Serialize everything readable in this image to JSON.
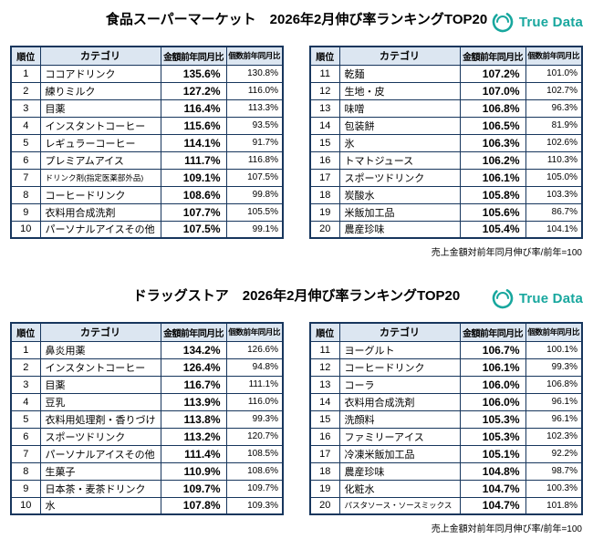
{
  "logo": {
    "text": "True Data",
    "icon": "truedata-ring-icon",
    "color": "#18a79e"
  },
  "colors": {
    "border": "#17365d",
    "header_bg": "#dce6f1",
    "logo_teal": "#18a79e"
  },
  "table_headers": {
    "rank": "順位",
    "category": "カテゴリ",
    "amount": "金額前年同月比",
    "count": "個数前年同月比"
  },
  "sections": [
    {
      "title": "食品スーパーマーケット　2026年2月伸び率ランキングTOP20",
      "footnote": "売上金額対前年同月伸び率/前年=100",
      "tables": [
        {
          "rows": [
            {
              "rank": "1",
              "category": "ココアドリンク",
              "amount": "135.6%",
              "count": "130.8%"
            },
            {
              "rank": "2",
              "category": "練りミルク",
              "amount": "127.2%",
              "count": "116.0%"
            },
            {
              "rank": "3",
              "category": "目薬",
              "amount": "116.4%",
              "count": "113.3%"
            },
            {
              "rank": "4",
              "category": "インスタントコーヒー",
              "amount": "115.6%",
              "count": "93.5%"
            },
            {
              "rank": "5",
              "category": "レギュラーコーヒー",
              "amount": "114.1%",
              "count": "91.7%"
            },
            {
              "rank": "6",
              "category": "プレミアムアイス",
              "amount": "111.7%",
              "count": "116.8%"
            },
            {
              "rank": "7",
              "category": "ドリンク剤(指定医薬部外品)",
              "amount": "109.1%",
              "count": "107.5%"
            },
            {
              "rank": "8",
              "category": "コーヒードリンク",
              "amount": "108.6%",
              "count": "99.8%"
            },
            {
              "rank": "9",
              "category": "衣料用合成洗剤",
              "amount": "107.7%",
              "count": "105.5%"
            },
            {
              "rank": "10",
              "category": "パーソナルアイスその他",
              "amount": "107.5%",
              "count": "99.1%"
            }
          ]
        },
        {
          "rows": [
            {
              "rank": "11",
              "category": "乾麺",
              "amount": "107.2%",
              "count": "101.0%"
            },
            {
              "rank": "12",
              "category": "生地・皮",
              "amount": "107.0%",
              "count": "102.7%"
            },
            {
              "rank": "13",
              "category": "味噌",
              "amount": "106.8%",
              "count": "96.3%"
            },
            {
              "rank": "14",
              "category": "包装餅",
              "amount": "106.5%",
              "count": "81.9%"
            },
            {
              "rank": "15",
              "category": "氷",
              "amount": "106.3%",
              "count": "102.6%"
            },
            {
              "rank": "16",
              "category": "トマトジュース",
              "amount": "106.2%",
              "count": "110.3%"
            },
            {
              "rank": "17",
              "category": "スポーツドリンク",
              "amount": "106.1%",
              "count": "105.0%"
            },
            {
              "rank": "18",
              "category": "炭酸水",
              "amount": "105.8%",
              "count": "103.3%"
            },
            {
              "rank": "19",
              "category": "米飯加工品",
              "amount": "105.6%",
              "count": "86.7%"
            },
            {
              "rank": "20",
              "category": "農産珍味",
              "amount": "105.4%",
              "count": "104.1%"
            }
          ]
        }
      ]
    },
    {
      "title": "ドラッグストア　2026年2月伸び率ランキングTOP20",
      "footnote": "売上金額対前年同月伸び率/前年=100",
      "tables": [
        {
          "rows": [
            {
              "rank": "1",
              "category": "鼻炎用薬",
              "amount": "134.2%",
              "count": "126.6%"
            },
            {
              "rank": "2",
              "category": "インスタントコーヒー",
              "amount": "126.4%",
              "count": "94.8%"
            },
            {
              "rank": "3",
              "category": "目薬",
              "amount": "116.7%",
              "count": "111.1%"
            },
            {
              "rank": "4",
              "category": "豆乳",
              "amount": "113.9%",
              "count": "116.0%"
            },
            {
              "rank": "5",
              "category": "衣料用処理剤・香りづけ",
              "amount": "113.8%",
              "count": "99.3%"
            },
            {
              "rank": "6",
              "category": "スポーツドリンク",
              "amount": "113.2%",
              "count": "120.7%"
            },
            {
              "rank": "7",
              "category": "パーソナルアイスその他",
              "amount": "111.4%",
              "count": "108.5%"
            },
            {
              "rank": "8",
              "category": "生菓子",
              "amount": "110.9%",
              "count": "108.6%"
            },
            {
              "rank": "9",
              "category": "日本茶・麦茶ドリンク",
              "amount": "109.7%",
              "count": "109.7%"
            },
            {
              "rank": "10",
              "category": "水",
              "amount": "107.8%",
              "count": "109.3%"
            }
          ]
        },
        {
          "rows": [
            {
              "rank": "11",
              "category": "ヨーグルト",
              "amount": "106.7%",
              "count": "100.1%"
            },
            {
              "rank": "12",
              "category": "コーヒードリンク",
              "amount": "106.1%",
              "count": "99.3%"
            },
            {
              "rank": "13",
              "category": "コーラ",
              "amount": "106.0%",
              "count": "106.8%"
            },
            {
              "rank": "14",
              "category": "衣料用合成洗剤",
              "amount": "106.0%",
              "count": "96.1%"
            },
            {
              "rank": "15",
              "category": "洗顔料",
              "amount": "105.3%",
              "count": "96.1%"
            },
            {
              "rank": "16",
              "category": "ファミリーアイス",
              "amount": "105.3%",
              "count": "102.3%"
            },
            {
              "rank": "17",
              "category": "冷凍米飯加工品",
              "amount": "105.1%",
              "count": "92.2%"
            },
            {
              "rank": "18",
              "category": "農産珍味",
              "amount": "104.8%",
              "count": "98.7%"
            },
            {
              "rank": "19",
              "category": "化粧水",
              "amount": "104.7%",
              "count": "100.3%"
            },
            {
              "rank": "20",
              "category": "パスタソース・ソースミックス",
              "amount": "104.7%",
              "count": "101.8%"
            }
          ]
        }
      ]
    }
  ]
}
